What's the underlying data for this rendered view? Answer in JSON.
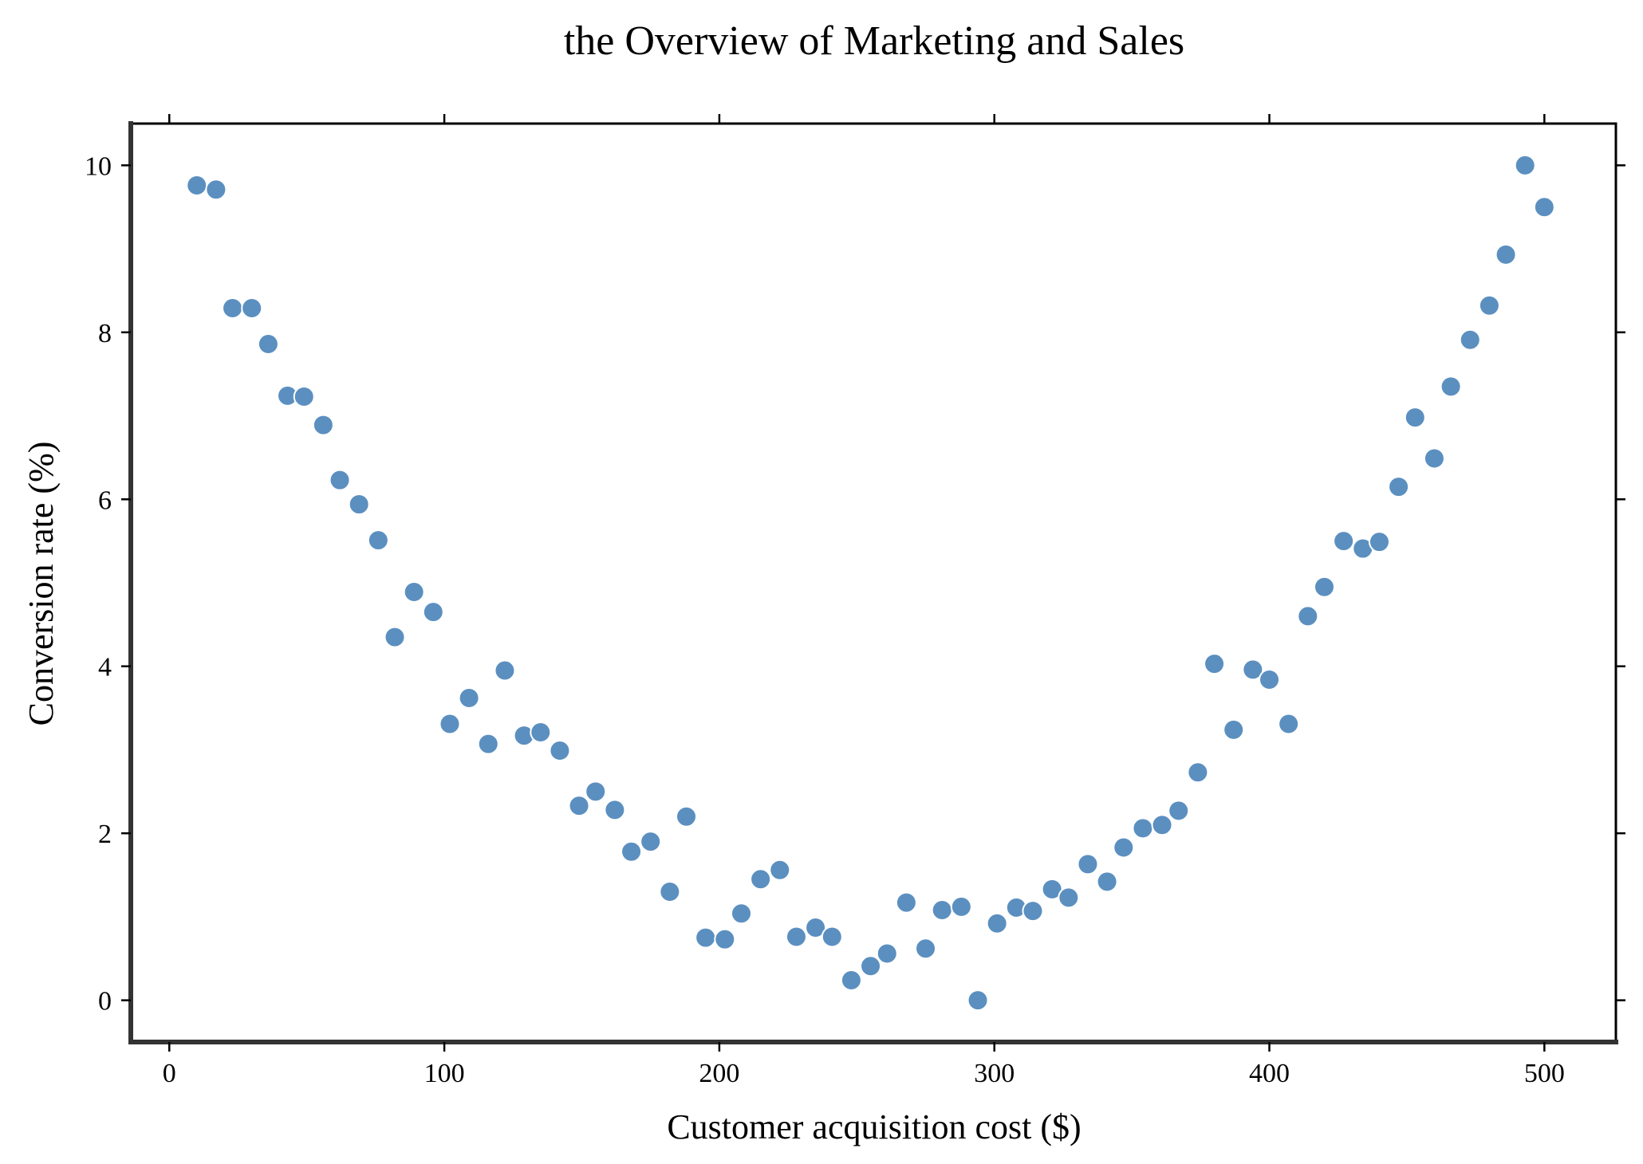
{
  "chart_data": {
    "type": "scatter",
    "title": "the Overview of Marketing and Sales",
    "xlabel": "Customer acquisition cost ($)",
    "ylabel": "Conversion rate (%)",
    "xlim": [
      -14,
      526
    ],
    "ylim": [
      -0.5,
      10.5
    ],
    "xticks": [
      0,
      100,
      200,
      300,
      400,
      500
    ],
    "yticks": [
      0,
      2,
      4,
      6,
      8,
      10
    ],
    "grid": false,
    "legend": "none",
    "point_color": "#5b8fc0",
    "points": [
      [
        10,
        9.76
      ],
      [
        17,
        9.71
      ],
      [
        23,
        8.29
      ],
      [
        30,
        8.29
      ],
      [
        36,
        7.86
      ],
      [
        43,
        7.24
      ],
      [
        49,
        7.23
      ],
      [
        56,
        6.89
      ],
      [
        62,
        6.23
      ],
      [
        69,
        5.94
      ],
      [
        76,
        5.51
      ],
      [
        82,
        4.35
      ],
      [
        89,
        4.89
      ],
      [
        96,
        4.65
      ],
      [
        102,
        3.31
      ],
      [
        109,
        3.62
      ],
      [
        116,
        3.07
      ],
      [
        122,
        3.95
      ],
      [
        129,
        3.17
      ],
      [
        135,
        3.21
      ],
      [
        142,
        2.99
      ],
      [
        149,
        2.33
      ],
      [
        155,
        2.5
      ],
      [
        162,
        2.28
      ],
      [
        168,
        1.78
      ],
      [
        175,
        1.9
      ],
      [
        182,
        1.3
      ],
      [
        188,
        2.2
      ],
      [
        195,
        0.75
      ],
      [
        202,
        0.73
      ],
      [
        208,
        1.04
      ],
      [
        215,
        1.45
      ],
      [
        222,
        1.56
      ],
      [
        228,
        0.76
      ],
      [
        235,
        0.87
      ],
      [
        241,
        0.76
      ],
      [
        248,
        0.24
      ],
      [
        255,
        0.41
      ],
      [
        261,
        0.56
      ],
      [
        268,
        1.17
      ],
      [
        275,
        0.62
      ],
      [
        281,
        1.08
      ],
      [
        288,
        1.12
      ],
      [
        294,
        0.0
      ],
      [
        301,
        0.92
      ],
      [
        308,
        1.11
      ],
      [
        314,
        1.07
      ],
      [
        321,
        1.33
      ],
      [
        327,
        1.23
      ],
      [
        334,
        1.63
      ],
      [
        341,
        1.42
      ],
      [
        347,
        1.83
      ],
      [
        354,
        2.06
      ],
      [
        361,
        2.1
      ],
      [
        367,
        2.27
      ],
      [
        374,
        2.73
      ],
      [
        380,
        4.03
      ],
      [
        387,
        3.24
      ],
      [
        394,
        3.96
      ],
      [
        400,
        3.84
      ],
      [
        407,
        3.31
      ],
      [
        414,
        4.6
      ],
      [
        420,
        4.95
      ],
      [
        427,
        5.5
      ],
      [
        434,
        5.41
      ],
      [
        440,
        5.49
      ],
      [
        447,
        6.15
      ],
      [
        453,
        6.98
      ],
      [
        460,
        6.49
      ],
      [
        466,
        7.35
      ],
      [
        473,
        7.91
      ],
      [
        480,
        8.32
      ],
      [
        486,
        8.93
      ],
      [
        493,
        10.0
      ],
      [
        500,
        9.5
      ]
    ]
  }
}
